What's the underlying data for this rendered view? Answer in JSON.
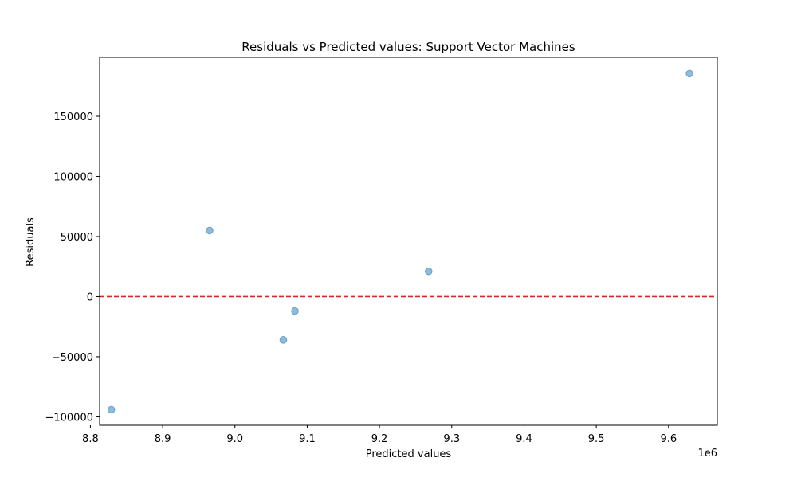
{
  "chart_data": {
    "type": "scatter",
    "title": "Residuals vs Predicted values: Support Vector Machines",
    "xlabel": "Predicted values",
    "ylabel": "Residuals",
    "x_offset_label": "1e6",
    "xlim": [
      8.8128,
      9.6675
    ],
    "ylim": [
      -107000,
      199000
    ],
    "x_ticks": [
      8.8,
      8.9,
      9.0,
      9.1,
      9.2,
      9.3,
      9.4,
      9.5,
      9.6
    ],
    "x_tick_labels": [
      "8.8",
      "8.9",
      "9.0",
      "9.1",
      "9.2",
      "9.3",
      "9.4",
      "9.5",
      "9.6"
    ],
    "y_ticks": [
      -100000,
      -50000,
      0,
      50000,
      100000,
      150000
    ],
    "y_tick_labels": [
      "−100000",
      "−50000",
      "0",
      "50000",
      "100000",
      "150000"
    ],
    "grid": false,
    "series": [
      {
        "points": [
          {
            "x": 8.829,
            "y": -94000
          },
          {
            "x": 8.965,
            "y": 55000
          },
          {
            "x": 9.067,
            "y": -36000
          },
          {
            "x": 9.083,
            "y": -12000
          },
          {
            "x": 9.268,
            "y": 21000
          },
          {
            "x": 9.629,
            "y": 185500
          }
        ]
      }
    ],
    "reference_line": {
      "y": 0,
      "color": "#d62728",
      "style": "dashed"
    },
    "colors": {
      "points": "#1f77b4",
      "reference_line": "#d62728"
    }
  }
}
